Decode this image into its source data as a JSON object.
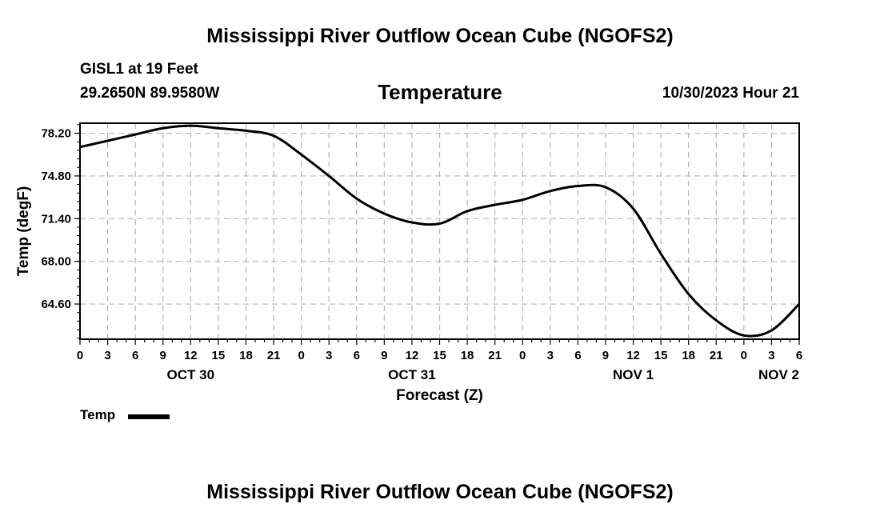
{
  "header": {
    "title": "Mississippi River Outflow Ocean Cube (NGOFS2)",
    "station": "GISL1 at 19 Feet",
    "coords": "29.2650N  89.9580W",
    "plot_title": "Temperature",
    "datetime": "10/30/2023 Hour 21"
  },
  "legend": {
    "label": "Temp"
  },
  "footer": {
    "title": "Mississippi River Outflow Ocean Cube (NGOFS2)"
  },
  "chart_data": {
    "type": "line",
    "title": "Temperature",
    "xlabel": "Forecast (Z)",
    "ylabel": "Temp (degF)",
    "x_unit": "hours since OCT 30 00Z",
    "xlim": [
      0,
      78
    ],
    "ylim": [
      61.8,
      79.0
    ],
    "yticks": [
      64.6,
      68.0,
      71.4,
      74.8,
      78.2
    ],
    "ytick_labels": [
      "64.60",
      "68.00",
      "71.40",
      "74.80",
      "78.20"
    ],
    "xticks": [
      0,
      3,
      6,
      9,
      12,
      15,
      18,
      21,
      24,
      27,
      30,
      33,
      36,
      39,
      42,
      45,
      48,
      51,
      54,
      57,
      60,
      63,
      66,
      69,
      72,
      75,
      78
    ],
    "xtick_labels": [
      "0",
      "3",
      "6",
      "9",
      "12",
      "15",
      "18",
      "21",
      "0",
      "3",
      "6",
      "9",
      "12",
      "15",
      "18",
      "21",
      "0",
      "3",
      "6",
      "9",
      "12",
      "15",
      "18",
      "21",
      "0",
      "3",
      "6"
    ],
    "date_labels": [
      {
        "x": 12,
        "label": "OCT 30"
      },
      {
        "x": 36,
        "label": "OCT 31"
      },
      {
        "x": 60,
        "label": "NOV 1"
      },
      {
        "x": 78,
        "label": "NOV 2"
      }
    ],
    "grid": true,
    "legend_position": "bottom-left",
    "series": [
      {
        "name": "Temp",
        "x": [
          0,
          3,
          6,
          9,
          12,
          15,
          18,
          21,
          24,
          27,
          30,
          33,
          36,
          39,
          42,
          45,
          48,
          51,
          54,
          57,
          60,
          63,
          66,
          69,
          72,
          75,
          78
        ],
        "values": [
          77.1,
          77.6,
          78.1,
          78.6,
          78.8,
          78.6,
          78.4,
          78.0,
          76.5,
          74.8,
          73.0,
          71.8,
          71.1,
          71.0,
          72.0,
          72.5,
          72.9,
          73.6,
          74.0,
          73.9,
          72.2,
          68.6,
          65.4,
          63.3,
          62.1,
          62.5,
          64.6
        ]
      }
    ]
  }
}
